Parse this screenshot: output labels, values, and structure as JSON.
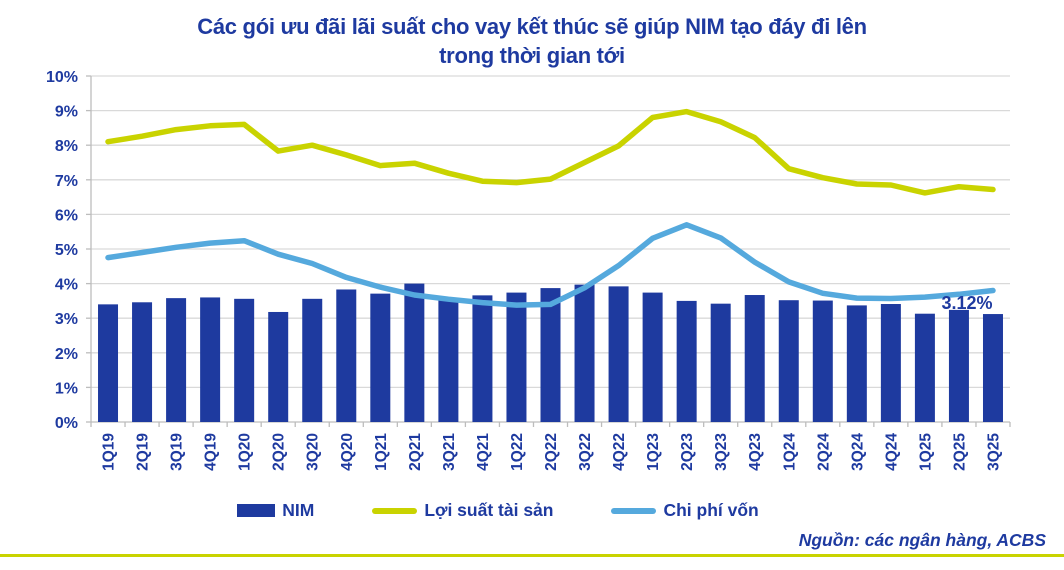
{
  "title": {
    "line1": "Các gói ưu đãi lãi suất cho vay kết thúc sẽ giúp NIM tạo đáy đi lên",
    "line2": "trong thời gian tới"
  },
  "source": "Nguồn: các ngân hàng, ACBS",
  "colors": {
    "navy_text": "#1e3aa0",
    "bar": "#1e3a9f",
    "asset_yield_line": "#c9d300",
    "cost_of_funds_line": "#55a9dd",
    "gridline": "#d9d9d9",
    "axis": "#bdbdbd",
    "bottom_rule": "#c9d300"
  },
  "chart_data": {
    "type": "bar",
    "subtype": "combo-bar-line",
    "categories": [
      "1Q19",
      "2Q19",
      "3Q19",
      "4Q19",
      "1Q20",
      "2Q20",
      "3Q20",
      "4Q20",
      "1Q21",
      "2Q21",
      "3Q21",
      "4Q21",
      "1Q22",
      "2Q22",
      "3Q22",
      "4Q22",
      "1Q23",
      "2Q23",
      "3Q23",
      "4Q23",
      "1Q24",
      "2Q24",
      "3Q24",
      "4Q24",
      "1Q25",
      "2Q25",
      "3Q25"
    ],
    "series": [
      {
        "name": "NIM",
        "type": "bar",
        "color": "#1e3a9f",
        "values": [
          3.4,
          3.46,
          3.58,
          3.6,
          3.56,
          3.18,
          3.56,
          3.83,
          3.71,
          4.0,
          3.53,
          3.66,
          3.74,
          3.87,
          3.97,
          3.92,
          3.74,
          3.5,
          3.42,
          3.67,
          3.52,
          3.51,
          3.37,
          3.41,
          3.13,
          3.24,
          3.12
        ]
      },
      {
        "name": "Lợi suất tài sản",
        "type": "line",
        "color": "#c9d300",
        "values": [
          8.1,
          8.26,
          8.45,
          8.56,
          8.6,
          7.83,
          8.0,
          7.72,
          7.41,
          7.48,
          7.19,
          6.96,
          6.92,
          7.02,
          7.5,
          7.98,
          8.8,
          8.97,
          8.68,
          8.22,
          7.32,
          7.06,
          6.88,
          6.85,
          6.62,
          6.8,
          6.72
        ]
      },
      {
        "name": "Chi phí vốn",
        "type": "line",
        "color": "#55a9dd",
        "values": [
          4.75,
          4.9,
          5.05,
          5.17,
          5.24,
          4.85,
          4.58,
          4.18,
          3.9,
          3.67,
          3.55,
          3.45,
          3.38,
          3.4,
          3.88,
          4.52,
          5.31,
          5.7,
          5.32,
          4.62,
          4.05,
          3.72,
          3.58,
          3.57,
          3.61,
          3.69,
          3.8
        ]
      }
    ],
    "ylim": [
      0,
      10
    ],
    "ytick_step": 1,
    "ytick_suffix": "%",
    "grid": true,
    "legend_position": "bottom",
    "annotation": {
      "text": "3.12%",
      "series": "NIM",
      "category": "3Q25"
    }
  }
}
